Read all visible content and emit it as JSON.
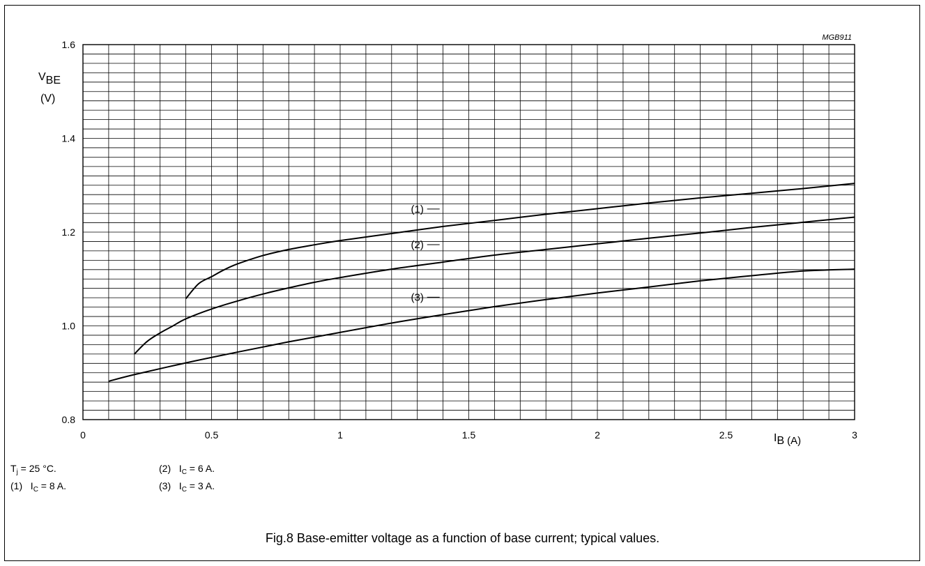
{
  "chart_data": {
    "type": "line",
    "figure_code": "MGB911",
    "ylabel_main": "V",
    "ylabel_sub": "BE",
    "ylabel_unit": "(V)",
    "xlabel_main": "I",
    "xlabel_sub": "B",
    "xlabel_unit": "(A)",
    "xlim": [
      0,
      3
    ],
    "ylim": [
      0.8,
      1.6
    ],
    "xticks": [
      "0",
      "0.5",
      "1",
      "1.5",
      "2",
      "2.5",
      "3"
    ],
    "yticks": [
      "0.8",
      "1.0",
      "1.2",
      "1.4",
      "1.6"
    ],
    "grid": true,
    "series": [
      {
        "name": "(1)",
        "x": [
          0.4,
          0.45,
          0.5,
          0.55,
          0.6,
          0.7,
          0.8,
          0.9,
          1.0,
          1.2,
          1.4,
          1.6,
          1.8,
          2.0,
          2.2,
          2.4,
          2.6,
          2.8,
          3.0
        ],
        "y": [
          1.058,
          1.09,
          1.105,
          1.12,
          1.132,
          1.15,
          1.163,
          1.173,
          1.182,
          1.197,
          1.212,
          1.225,
          1.238,
          1.25,
          1.262,
          1.273,
          1.283,
          1.293,
          1.304
        ]
      },
      {
        "name": "(2)",
        "x": [
          0.2,
          0.25,
          0.3,
          0.35,
          0.4,
          0.5,
          0.6,
          0.7,
          0.8,
          0.9,
          1.0,
          1.2,
          1.4,
          1.6,
          1.8,
          2.0,
          2.2,
          2.4,
          2.6,
          2.8,
          3.0
        ],
        "y": [
          0.94,
          0.967,
          0.985,
          1.0,
          1.015,
          1.036,
          1.053,
          1.068,
          1.081,
          1.093,
          1.103,
          1.121,
          1.136,
          1.151,
          1.163,
          1.175,
          1.187,
          1.198,
          1.21,
          1.221,
          1.232
        ]
      },
      {
        "name": "(3)",
        "x": [
          0.1,
          0.2,
          0.4,
          0.6,
          0.8,
          1.0,
          1.2,
          1.4,
          1.6,
          1.8,
          2.0,
          2.2,
          2.4,
          2.6,
          2.8,
          3.0
        ],
        "y": [
          0.882,
          0.896,
          0.921,
          0.944,
          0.966,
          0.986,
          1.006,
          1.024,
          1.041,
          1.056,
          1.07,
          1.083,
          1.096,
          1.107,
          1.117,
          1.121
        ]
      }
    ]
  },
  "notes": {
    "tj_prefix": "T",
    "tj_sub": "j",
    "tj_value": " = 25 °C.",
    "n1_num": "(1)",
    "n1_prefix": "I",
    "n1_sub": "C",
    "n1_value": " = 8 A.",
    "n2_num": "(2)",
    "n2_prefix": "I",
    "n2_sub": "C",
    "n2_value": " = 6 A.",
    "n3_num": "(3)",
    "n3_prefix": "I",
    "n3_sub": "C",
    "n3_value": " = 3 A."
  },
  "caption": "Fig.8  Base-emitter voltage as a function of base current; typical values."
}
